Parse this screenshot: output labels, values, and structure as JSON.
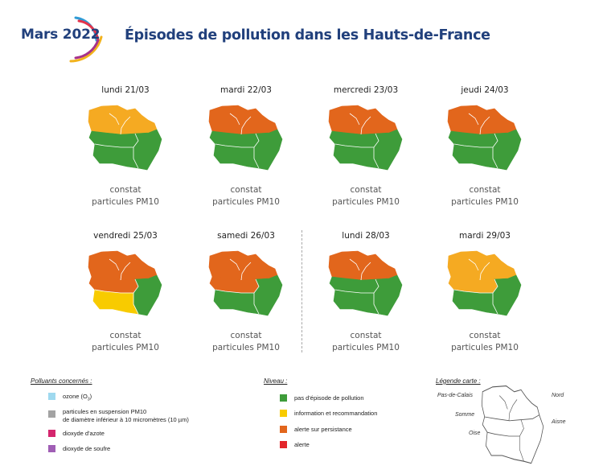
{
  "header": {
    "logo_text": "Mars 2022",
    "title": "Épisodes de pollution dans les Hauts-de-France",
    "logo_colors": [
      "#2f9bd6",
      "#e4334b",
      "#f2b21c",
      "#a6328b"
    ]
  },
  "days": [
    {
      "label": "lundi 21/03",
      "caption_line1": "constat",
      "caption_line2": "particules PM10",
      "regions": {
        "north": "#f5aa22",
        "pdc": "#f5aa22",
        "nord": "#f5aa22",
        "somme": "#3e9c3a",
        "aisne": "#3e9c3a",
        "oise": "#3e9c3a"
      }
    },
    {
      "label": "mardi 22/03",
      "caption_line1": "constat",
      "caption_line2": "particules PM10",
      "regions": {
        "pdc": "#e2661c",
        "nord": "#e2661c",
        "somme": "#3e9c3a",
        "aisne": "#3e9c3a",
        "oise": "#3e9c3a"
      }
    },
    {
      "label": "mercredi 23/03",
      "caption_line1": "constat",
      "caption_line2": "particules PM10",
      "regions": {
        "pdc": "#e2661c",
        "nord": "#e2661c",
        "somme": "#3e9c3a",
        "aisne": "#3e9c3a",
        "oise": "#3e9c3a"
      }
    },
    {
      "label": "jeudi 24/03",
      "caption_line1": "constat",
      "caption_line2": "particules PM10",
      "regions": {
        "pdc": "#e2661c",
        "nord": "#e2661c",
        "somme": "#3e9c3a",
        "aisne": "#3e9c3a",
        "oise": "#3e9c3a"
      }
    },
    {
      "label": "vendredi 25/03",
      "caption_line1": "constat",
      "caption_line2": "particules PM10",
      "regions": {
        "pdc": "#e2661c",
        "nord": "#e2661c",
        "somme": "#e2661c",
        "aisne": "#3e9c3a",
        "oise": "#f8cb00"
      }
    },
    {
      "label": "samedi 26/03",
      "caption_line1": "constat",
      "caption_line2": "particules PM10",
      "regions": {
        "pdc": "#e2661c",
        "nord": "#e2661c",
        "somme": "#e2661c",
        "aisne": "#3e9c3a",
        "oise": "#3e9c3a"
      }
    },
    {
      "label": "lundi 28/03",
      "caption_line1": "constat",
      "caption_line2": "particules PM10",
      "regions": {
        "pdc": "#e2661c",
        "nord": "#e2661c",
        "somme": "#3e9c3a",
        "aisne": "#3e9c3a",
        "oise": "#3e9c3a"
      }
    },
    {
      "label": "mardi 29/03",
      "caption_line1": "constat",
      "caption_line2": "particules PM10",
      "regions": {
        "pdc": "#f5aa22",
        "nord": "#f5aa22",
        "somme": "#f5aa22",
        "aisne": "#3e9c3a",
        "oise": "#3e9c3a"
      }
    }
  ],
  "legend_pollutants": {
    "title": "Polluants concernés :",
    "items": [
      {
        "color": "#9fd9ef",
        "text": "ozone (O",
        "sub": "3",
        "after": ")"
      },
      {
        "color": "#a3a3a3",
        "text": "particules en suspension PM10",
        "text2": "de diamètre inférieur à 10 micromètres (10 µm)"
      },
      {
        "color": "#d4266e",
        "text": "dioxyde d'azote"
      },
      {
        "color": "#a05eb5",
        "text": "dioxyde de soufre"
      }
    ]
  },
  "legend_levels": {
    "title": "Niveau :",
    "items": [
      {
        "color": "#3e9c3a",
        "text": "pas d'épisode de pollution"
      },
      {
        "color": "#f8cb00",
        "text": "information et recommandation"
      },
      {
        "color": "#e2661c",
        "text": "alerte sur persistance"
      },
      {
        "color": "#e3252a",
        "text": "alerte"
      }
    ]
  },
  "legend_map": {
    "title": "Légende carte :",
    "labels": {
      "pdc": "Pas-de-Calais",
      "nord": "Nord",
      "somme": "Somme",
      "aisne": "Aisne",
      "oise": "Oise"
    }
  }
}
